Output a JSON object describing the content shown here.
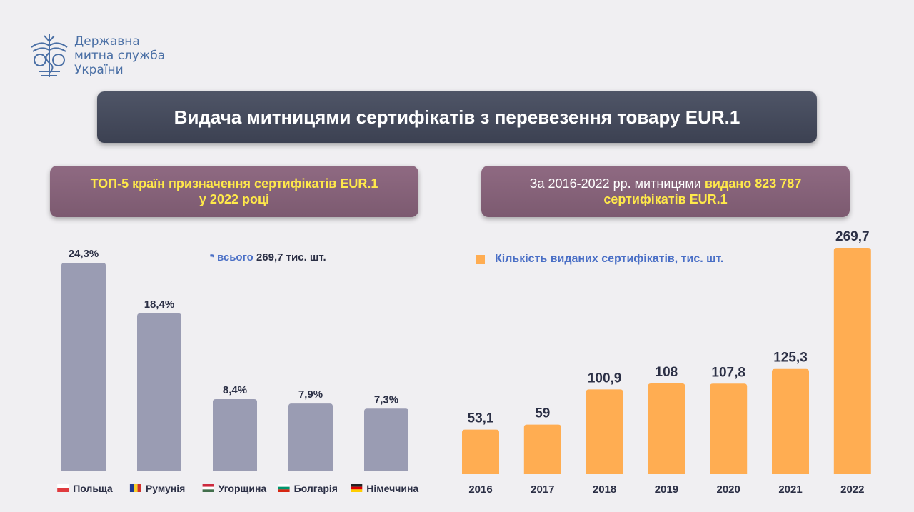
{
  "logo": {
    "lines": [
      "Державна",
      "митна служба",
      "України"
    ]
  },
  "title": "Видача митницями сертифікатів з перевезення товару EUR.1",
  "left_panel": {
    "heading_line1": "ТОП-5 країн призначення сертифікатів EUR.1",
    "heading_line2": "у 2022 році",
    "note_prefix": "* всього",
    "note_value": "269,7 тис. шт."
  },
  "right_panel": {
    "heading_plain": "За 2016-2022 рр. митницями",
    "heading_bold": "видано 823 787",
    "heading_line2": "сертифікатів EUR.1",
    "legend": "Кількість виданих сертифікатів, тис. шт."
  },
  "colors": {
    "left_bars": "#9a9cb3",
    "right_bars": "#ffad52",
    "title_bg": "#454a5c",
    "panel_bg": "#85627a",
    "highlight": "#ffe94a"
  },
  "chart_data": [
    {
      "type": "bar",
      "title": "ТОП-5 країн призначення сертифікатів EUR.1 у 2022 році",
      "categories": [
        "Польща",
        "Румунія",
        "Угорщина",
        "Болгарія",
        "Німеччина"
      ],
      "flag_icons": [
        "flag-poland-icon",
        "flag-romania-icon",
        "flag-hungary-icon",
        "flag-bulgaria-icon",
        "flag-germany-icon"
      ],
      "values": [
        24.3,
        18.4,
        8.4,
        7.9,
        7.3
      ],
      "value_labels": [
        "24,3%",
        "18,4%",
        "8,4%",
        "7,9%",
        "7,3%"
      ],
      "unit": "%",
      "ylim": [
        0,
        24.3
      ],
      "grid": false
    },
    {
      "type": "bar",
      "title": "За 2016-2022 рр. митницями видано 823 787 сертифікатів EUR.1",
      "categories": [
        "2016",
        "2017",
        "2018",
        "2019",
        "2020",
        "2021",
        "2022"
      ],
      "series": [
        {
          "name": "Кількість виданих сертифікатів, тис. шт.",
          "values": [
            53.1,
            59,
            100.9,
            108,
            107.8,
            125.3,
            269.7
          ]
        }
      ],
      "value_labels": [
        "53,1",
        "59",
        "100,9",
        "108",
        "107,8",
        "125,3",
        "269,7"
      ],
      "ylim": [
        0,
        269.7
      ],
      "legend": "top-left",
      "grid": false
    }
  ]
}
